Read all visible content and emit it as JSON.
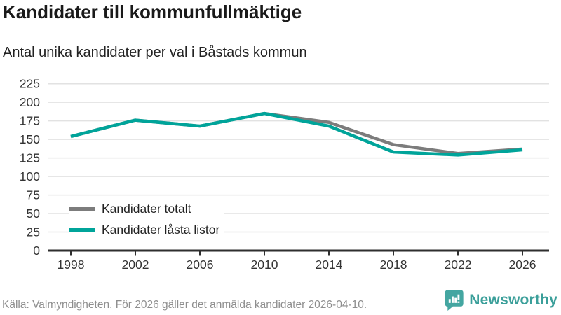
{
  "header": {
    "title": "Kandidater till kommunfullmäktige",
    "subtitle": "Antal unika kandidater per val i Båstads kommun"
  },
  "chart_data": {
    "type": "line",
    "categories": [
      1998,
      2002,
      2006,
      2010,
      2014,
      2018,
      2022,
      2026
    ],
    "series": [
      {
        "name": "Kandidater totalt",
        "color": "#7c7c7c",
        "values": [
          154,
          176,
          168,
          185,
          173,
          143,
          131,
          137
        ]
      },
      {
        "name": "Kandidater låsta listor",
        "color": "#00a49a",
        "values": [
          154,
          176,
          168,
          185,
          168,
          133,
          129,
          136
        ]
      }
    ],
    "ylim": [
      0,
      225
    ],
    "yticks": [
      0,
      25,
      50,
      75,
      100,
      125,
      150,
      175,
      200,
      225
    ],
    "grid": "horizontal",
    "legend_position": "inside-bottom-left"
  },
  "footer": {
    "source": "Källa: Valmyndigheten. För 2026 gäller det anmälda kandidater 2026-04-10.",
    "brand": "Newsworthy"
  },
  "colors": {
    "grid": "#e2e2e2",
    "axis": "#2e2e2e",
    "tick_label": "#333333",
    "series_gray": "#7c7c7c",
    "series_teal": "#00a49a",
    "brand_teal": "#3b9f9a",
    "muted_text": "#8e8e8e"
  }
}
